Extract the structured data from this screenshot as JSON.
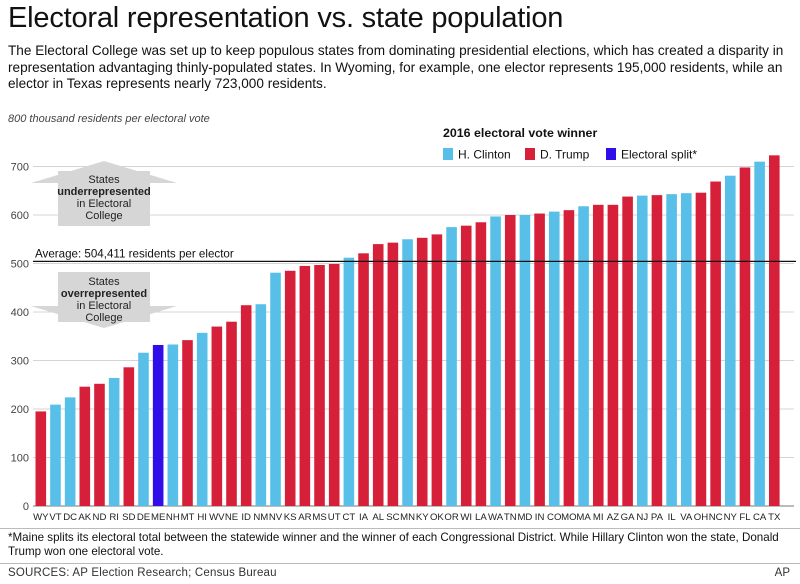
{
  "title": "Electoral representation vs. state population",
  "intro": "The Electoral College was set up to keep populous states from dominating presidential elections, which has created a disparity in representation advantaging thinly-populated states. In Wyoming, for example, one elector represents 195,000 residents, while an elector in Texas represents nearly 723,000 residents.",
  "footnote": "*Maine splits its electoral total between the statewide winner and the winner of each Congressional District. While Hillary Clinton won the state, Donald Trump won one electoral vote.",
  "sources": "SOURCES: AP Election Research; Census Bureau",
  "credit": "AP",
  "chart_data": {
    "type": "bar",
    "ylabel": "800 thousand residents per electoral vote",
    "ylim": [
      0,
      800
    ],
    "yticks": [
      0,
      100,
      200,
      300,
      400,
      500,
      600,
      700
    ],
    "legend_title": "2016 electoral vote winner",
    "legend_position": "top-right",
    "legend": [
      {
        "key": "C",
        "label": "H. Clinton",
        "color": "#58bfe8"
      },
      {
        "key": "T",
        "label": "D. Trump",
        "color": "#d6203a"
      },
      {
        "key": "S",
        "label": "Electoral split*",
        "color": "#2f0ee8"
      }
    ],
    "average": {
      "value": 504.411,
      "label": "Average: 504,411 residents per elector"
    },
    "annotations": {
      "under": [
        "States",
        "underrepresented",
        "in Electoral",
        "College"
      ],
      "over": [
        "States",
        "overrepresented",
        "in Electoral",
        "College"
      ]
    },
    "categories": [
      "WY",
      "VT",
      "DC",
      "AK",
      "ND",
      "RI",
      "SD",
      "DE",
      "ME",
      "NH",
      "MT",
      "HI",
      "WV",
      "NE",
      "ID",
      "NM",
      "NV",
      "KS",
      "AR",
      "MS",
      "UT",
      "CT",
      "IA",
      "AL",
      "SC",
      "MN",
      "KY",
      "OK",
      "OR",
      "WI",
      "LA",
      "WA",
      "TN",
      "MD",
      "IN",
      "CO",
      "MO",
      "MA",
      "MI",
      "AZ",
      "GA",
      "NJ",
      "PA",
      "IL",
      "VA",
      "OH",
      "NC",
      "NY",
      "FL",
      "CA",
      "TX"
    ],
    "values": [
      195,
      209,
      224,
      246,
      252,
      264,
      286,
      316,
      332,
      333,
      342,
      357,
      370,
      380,
      414,
      416,
      481,
      485,
      495,
      497,
      499,
      512,
      521,
      540,
      543,
      550,
      553,
      560,
      575,
      578,
      585,
      597,
      600,
      600,
      603,
      607,
      610,
      618,
      621,
      621,
      638,
      640,
      641,
      643,
      645,
      646,
      669,
      681,
      698,
      710,
      723
    ],
    "winners": [
      "T",
      "C",
      "C",
      "T",
      "T",
      "C",
      "T",
      "C",
      "S",
      "C",
      "T",
      "C",
      "T",
      "T",
      "T",
      "C",
      "C",
      "T",
      "T",
      "T",
      "T",
      "C",
      "T",
      "T",
      "T",
      "C",
      "T",
      "T",
      "C",
      "T",
      "T",
      "C",
      "T",
      "C",
      "T",
      "C",
      "T",
      "C",
      "T",
      "T",
      "T",
      "C",
      "T",
      "C",
      "C",
      "T",
      "T",
      "C",
      "T",
      "C",
      "T"
    ]
  }
}
